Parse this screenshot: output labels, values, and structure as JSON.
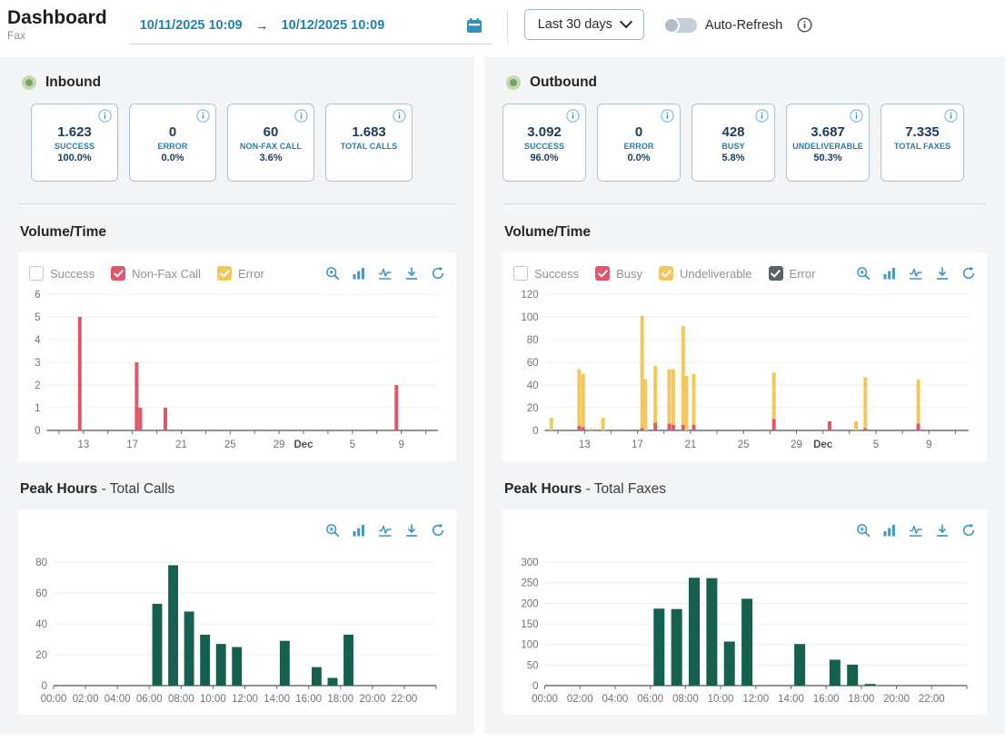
{
  "header": {
    "title": "Dashboard",
    "subtitle": "Fax",
    "date_from": "10/11/2025 10:09",
    "date_arrow": "→",
    "date_to": "10/12/2025 10:09",
    "range_label": "Last 30 days",
    "auto_refresh_label": "Auto-Refresh"
  },
  "colors": {
    "accent_blue": "#2e93bb",
    "navy": "#1d3c5a",
    "teal_label": "#2d7ba4",
    "red": "#e0566b",
    "yellow": "#f2c85c",
    "dark_gray": "#5a6268",
    "green_bar": "#15604e",
    "panel_bg": "#f3f5f6",
    "grid": "#e9ecf2"
  },
  "inbound": {
    "title": "Inbound",
    "cards": [
      {
        "value": "1.623",
        "label": "SUCCESS",
        "percent": "100.0%"
      },
      {
        "value": "0",
        "label": "ERROR",
        "percent": "0.0%"
      },
      {
        "value": "60",
        "label": "NON-FAX CALL",
        "percent": "3.6%"
      },
      {
        "value": "1.683",
        "label": "TOTAL CALLS",
        "percent": ""
      }
    ],
    "volume_title": "Volume/Time",
    "peak_title": "Peak Hours",
    "peak_subtitle": "- Total Calls"
  },
  "outbound": {
    "title": "Outbound",
    "cards": [
      {
        "value": "3.092",
        "label": "SUCCESS",
        "percent": "96.0%"
      },
      {
        "value": "0",
        "label": "ERROR",
        "percent": "0.0%"
      },
      {
        "value": "428",
        "label": "BUSY",
        "percent": "5.8%"
      },
      {
        "value": "3.687",
        "label": "UNDELIVERABLE",
        "percent": "50.3%"
      },
      {
        "value": "7.335",
        "label": "TOTAL FAXES",
        "percent": ""
      }
    ],
    "volume_title": "Volume/Time",
    "peak_title": "Peak Hours",
    "peak_subtitle": "- Total Faxes"
  },
  "chart_data": [
    {
      "id": "inbound-volume",
      "type": "bar",
      "title": "Volume/Time (Inbound)",
      "legend": [
        {
          "label": "Success",
          "color": "#ffffff",
          "checked": false
        },
        {
          "label": "Non-Fax Call",
          "color": "#e0566b",
          "checked": true
        },
        {
          "label": "Error",
          "color": "#f2c85c",
          "checked": true
        }
      ],
      "series": [
        {
          "name": "Non-Fax Call",
          "color": "#e0566b"
        },
        {
          "name": "Error",
          "color": "#f2c85c"
        }
      ],
      "x_domain": [
        10,
        42
      ],
      "x_ticks": [
        {
          "pos": 13,
          "label": "13"
        },
        {
          "pos": 17,
          "label": "17"
        },
        {
          "pos": 21,
          "label": "21"
        },
        {
          "pos": 25,
          "label": "25"
        },
        {
          "pos": 29,
          "label": "29"
        },
        {
          "pos": 31,
          "label": "Dec",
          "bold": true
        },
        {
          "pos": 35,
          "label": "5"
        },
        {
          "pos": 39,
          "label": "9"
        }
      ],
      "ylim": [
        0,
        6
      ],
      "y_ticks": [
        0,
        1,
        2,
        3,
        4,
        5,
        6
      ],
      "bars": [
        {
          "x": 12.7,
          "values": [
            5,
            0
          ]
        },
        {
          "x": 17.35,
          "values": [
            3,
            0
          ]
        },
        {
          "x": 17.65,
          "values": [
            1,
            0
          ]
        },
        {
          "x": 19.7,
          "values": [
            1,
            0
          ]
        },
        {
          "x": 38.6,
          "values": [
            2,
            0
          ]
        }
      ]
    },
    {
      "id": "outbound-volume",
      "type": "bar",
      "title": "Volume/Time (Outbound)",
      "legend": [
        {
          "label": "Success",
          "color": "#ffffff",
          "checked": false
        },
        {
          "label": "Busy",
          "color": "#e0566b",
          "checked": true
        },
        {
          "label": "Undeliverable",
          "color": "#f2c85c",
          "checked": true
        },
        {
          "label": "Error",
          "color": "#5a6268",
          "checked": true
        }
      ],
      "series": [
        {
          "name": "Busy",
          "color": "#e0566b"
        },
        {
          "name": "Undeliverable",
          "color": "#f2c85c"
        },
        {
          "name": "Error",
          "color": "#5a6268"
        }
      ],
      "x_domain": [
        10,
        42
      ],
      "x_ticks": [
        {
          "pos": 13,
          "label": "13"
        },
        {
          "pos": 17,
          "label": "17"
        },
        {
          "pos": 21,
          "label": "21"
        },
        {
          "pos": 25,
          "label": "25"
        },
        {
          "pos": 29,
          "label": "29"
        },
        {
          "pos": 31,
          "label": "Dec",
          "bold": true
        },
        {
          "pos": 35,
          "label": "5"
        },
        {
          "pos": 39,
          "label": "9"
        }
      ],
      "ylim": [
        0,
        120
      ],
      "y_ticks": [
        0,
        20,
        40,
        60,
        80,
        100,
        120
      ],
      "bars": [
        {
          "x": 10.5,
          "values": [
            0,
            11,
            0
          ]
        },
        {
          "x": 12.6,
          "values": [
            4,
            50,
            0
          ]
        },
        {
          "x": 12.9,
          "values": [
            3,
            47,
            0
          ]
        },
        {
          "x": 13.5,
          "values": [
            0,
            2,
            0
          ]
        },
        {
          "x": 14.4,
          "values": [
            0,
            11,
            0
          ]
        },
        {
          "x": 17.35,
          "values": [
            2,
            99,
            0
          ]
        },
        {
          "x": 17.6,
          "values": [
            0,
            45,
            0
          ]
        },
        {
          "x": 18.35,
          "values": [
            7,
            50,
            0
          ]
        },
        {
          "x": 19.4,
          "values": [
            6,
            48,
            0
          ]
        },
        {
          "x": 19.7,
          "values": [
            5,
            49,
            0
          ]
        },
        {
          "x": 20.45,
          "values": [
            5,
            87,
            0
          ]
        },
        {
          "x": 20.7,
          "values": [
            0,
            48,
            0
          ]
        },
        {
          "x": 21.25,
          "values": [
            5,
            45,
            0
          ]
        },
        {
          "x": 27.3,
          "values": [
            10,
            41,
            0
          ]
        },
        {
          "x": 31.5,
          "values": [
            8,
            0,
            0
          ]
        },
        {
          "x": 33.5,
          "values": [
            0,
            8,
            0
          ]
        },
        {
          "x": 34.2,
          "values": [
            2,
            45,
            0
          ]
        },
        {
          "x": 38.2,
          "values": [
            6,
            39,
            0
          ]
        }
      ]
    },
    {
      "id": "inbound-peak",
      "type": "bar",
      "title": "Peak Hours - Total Calls",
      "bar_color": "#15604e",
      "categories": [
        "00:00",
        "01:00",
        "02:00",
        "03:00",
        "04:00",
        "05:00",
        "06:00",
        "07:00",
        "08:00",
        "09:00",
        "10:00",
        "11:00",
        "12:00",
        "13:00",
        "14:00",
        "15:00",
        "16:00",
        "17:00",
        "18:00",
        "19:00",
        "20:00",
        "21:00",
        "22:00",
        "23:00"
      ],
      "values": [
        0,
        0,
        0,
        0,
        0,
        0,
        53,
        78,
        48,
        33,
        27,
        25,
        0,
        0,
        29,
        0,
        12,
        5,
        33,
        0,
        0,
        0,
        0,
        0
      ],
      "ylim": [
        0,
        80
      ],
      "y_ticks": [
        0,
        20,
        40,
        60,
        80
      ],
      "x_tick_every": 2
    },
    {
      "id": "outbound-peak",
      "type": "bar",
      "title": "Peak Hours - Total Faxes",
      "bar_color": "#15604e",
      "categories": [
        "00:00",
        "01:00",
        "02:00",
        "03:00",
        "04:00",
        "05:00",
        "06:00",
        "07:00",
        "08:00",
        "09:00",
        "10:00",
        "11:00",
        "12:00",
        "13:00",
        "14:00",
        "15:00",
        "16:00",
        "17:00",
        "18:00",
        "19:00",
        "20:00",
        "21:00",
        "22:00",
        "23:00"
      ],
      "values": [
        0,
        0,
        0,
        0,
        0,
        0,
        187,
        186,
        262,
        261,
        107,
        211,
        0,
        0,
        101,
        0,
        63,
        51,
        4,
        0,
        0,
        0,
        0,
        0
      ],
      "ylim": [
        0,
        300
      ],
      "y_ticks": [
        0,
        50,
        100,
        150,
        200,
        250,
        300
      ],
      "x_tick_every": 2
    }
  ]
}
